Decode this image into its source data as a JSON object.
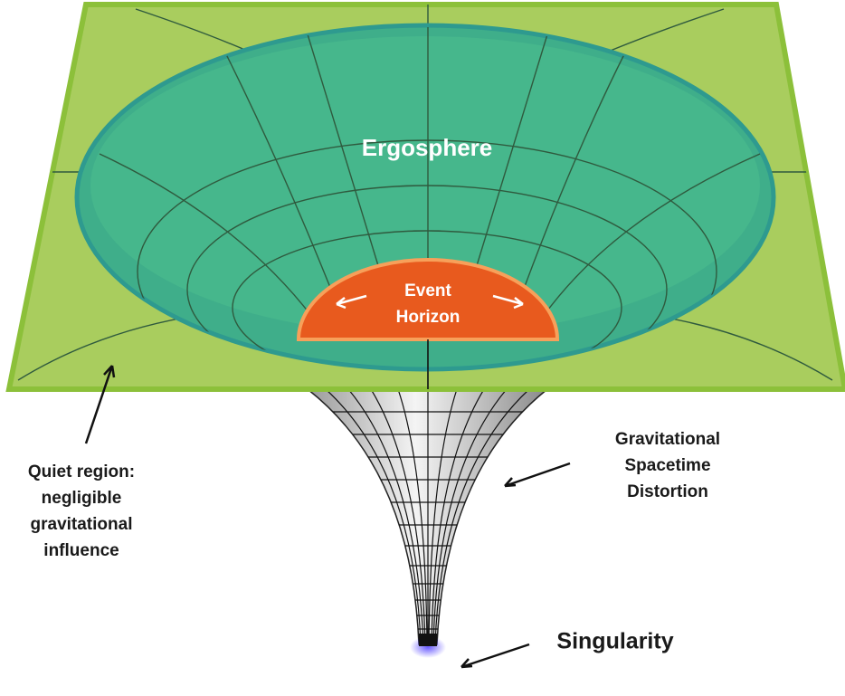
{
  "diagram": {
    "ergosphere": "Ergosphere",
    "event_horizon": [
      "Event",
      "Horizon"
    ],
    "quiet_region": [
      "Quiet region:",
      "negligible",
      "gravitational",
      "influence"
    ],
    "distortion": [
      "Gravitational",
      "Spacetime",
      "Distortion"
    ],
    "singularity": "Singularity"
  }
}
